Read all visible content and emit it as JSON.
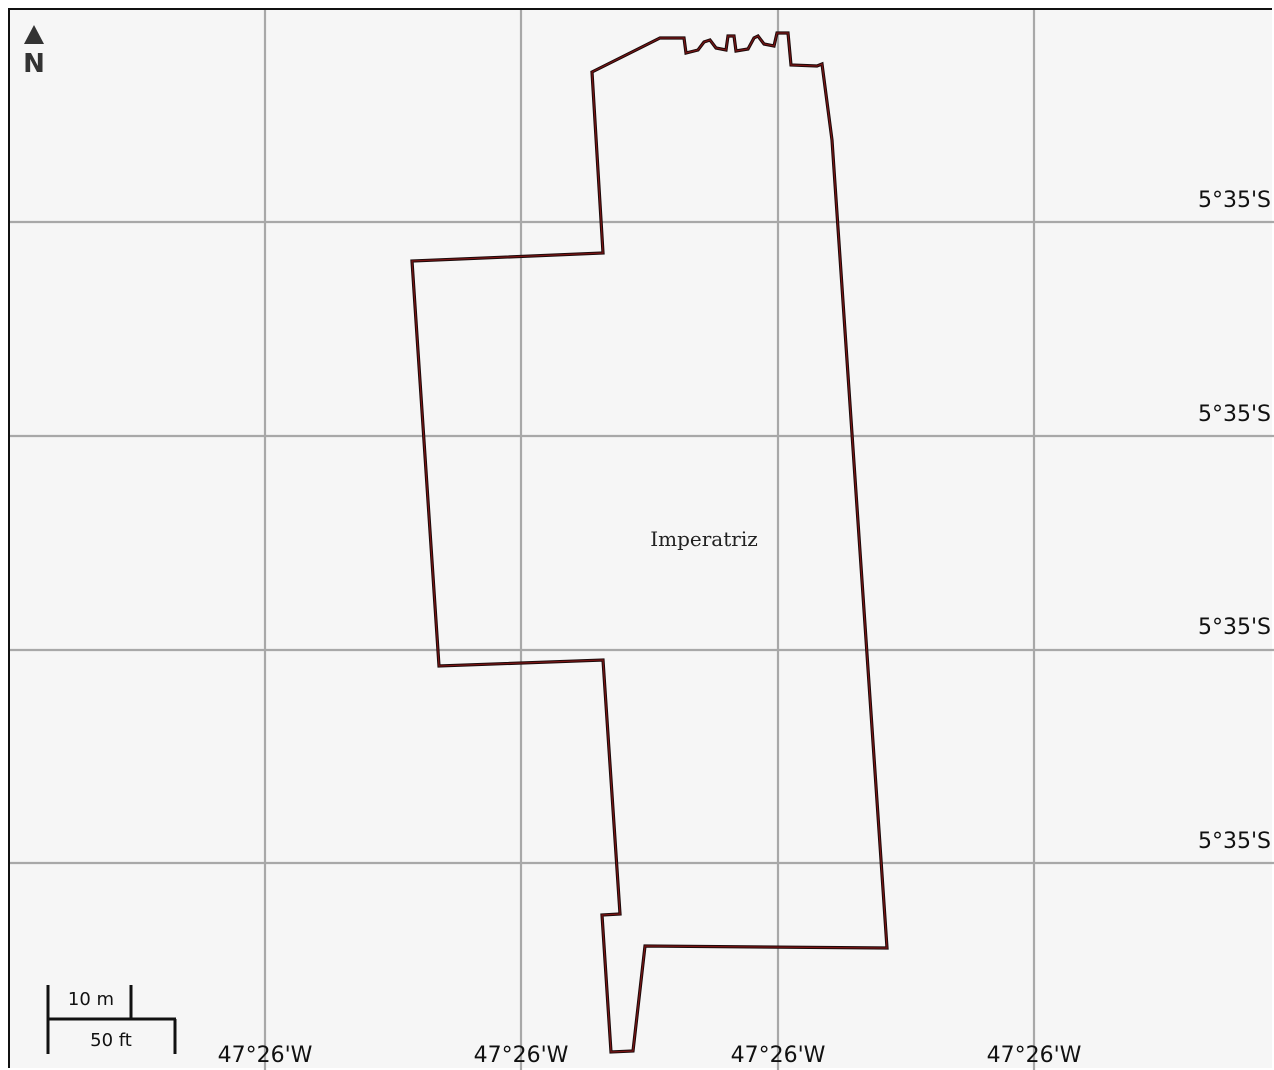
{
  "map": {
    "place_name": "Imperatriz",
    "north_label": "N",
    "latitude_labels": [
      "5°35'S",
      "5°35'S",
      "5°35'S",
      "5°35'S"
    ],
    "longitude_labels": [
      "47°26'W",
      "47°26'W",
      "47°26'W",
      "47°26'W"
    ],
    "scale_bar": {
      "metric_label": "10 m",
      "imperial_label": "50 ft"
    },
    "colors": {
      "background": "#f6f6f6",
      "grid": "#a8a8a8",
      "boundary": "#1a0a0a",
      "boundary_inner": "#7a1414"
    }
  }
}
